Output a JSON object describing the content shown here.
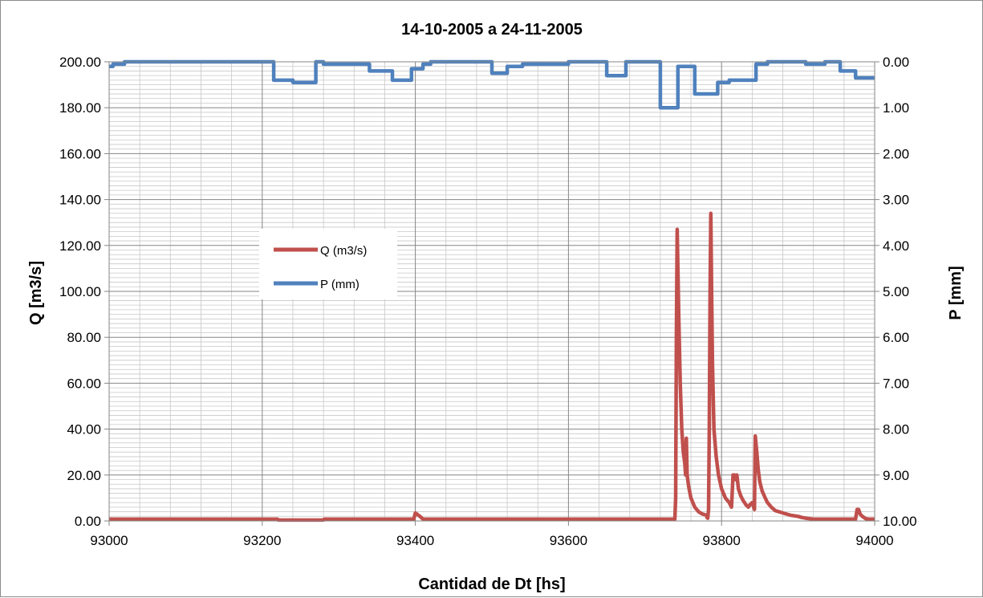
{
  "chart_data": {
    "type": "line",
    "title": "14-10-2005 a 24-11-2005",
    "xlabel": "Cantidad de Dt [hs]",
    "ylabel": "Q [m3/s]",
    "y2label": "P [mm]",
    "xlim": [
      93000,
      94000
    ],
    "ylim": [
      0,
      200
    ],
    "y2lim": [
      10,
      0
    ],
    "y2_inverted": true,
    "grid": true,
    "legend_position": "center-left",
    "x_ticks": [
      93000,
      93200,
      93400,
      93600,
      93800,
      94000
    ],
    "x_tick_labels": [
      "93000",
      "93200",
      "93400",
      "93600",
      "93800",
      "94000"
    ],
    "y_tick_labels": [
      "0.00",
      "20.00",
      "40.00",
      "60.00",
      "80.00",
      "100.00",
      "120.00",
      "140.00",
      "160.00",
      "180.00",
      "200.00"
    ],
    "y2_tick_labels": [
      "10.00",
      "9.00",
      "8.00",
      "7.00",
      "6.00",
      "5.00",
      "4.00",
      "3.00",
      "2.00",
      "1.00",
      "0.00"
    ],
    "series": [
      {
        "name": "Q (m3/s)",
        "color": "#c0504d",
        "axis": "left",
        "x": [
          93000,
          93220,
          93221,
          93280,
          93281,
          93350,
          93398,
          93400,
          93402,
          93406,
          93410,
          93500,
          93700,
          93739,
          93740,
          93741,
          93742,
          93744,
          93746,
          93748,
          93750,
          93752,
          93753,
          93754,
          93755,
          93757,
          93760,
          93765,
          93770,
          93775,
          93780,
          93781,
          93782,
          93783,
          93784,
          93785,
          93786,
          93787,
          93788,
          93790,
          93793,
          93796,
          93800,
          93805,
          93810,
          93813,
          93815,
          93817,
          93818,
          93820,
          93822,
          93825,
          93828,
          93832,
          93835,
          93837,
          93840,
          93842,
          93843,
          93844,
          93846,
          93848,
          93850,
          93853,
          93857,
          93860,
          93865,
          93870,
          93880,
          93890,
          93900,
          93905,
          93910,
          93920,
          93930,
          93940,
          93950,
          93960,
          93970,
          93975,
          93977,
          93979,
          93981,
          93984,
          93988,
          93992,
          94000
        ],
        "y": [
          0.8,
          0.8,
          0.4,
          0.4,
          0.8,
          0.8,
          0.8,
          3.5,
          3,
          2,
          0.8,
          0.8,
          0.8,
          0.8,
          10,
          80,
          127,
          90,
          60,
          40,
          30,
          25,
          20,
          36,
          20,
          15,
          10,
          6,
          4,
          3,
          2.5,
          1.5,
          1.2,
          5,
          40,
          100,
          134,
          100,
          70,
          40,
          28,
          20,
          14,
          10,
          8,
          6,
          20,
          20,
          18,
          20,
          14,
          11,
          9,
          7,
          6,
          7,
          8,
          6,
          5,
          37,
          30,
          22,
          17,
          13,
          10,
          8,
          6,
          4.5,
          3.5,
          2.5,
          2,
          1.5,
          1.2,
          0.8,
          0.8,
          0.8,
          0.8,
          0.8,
          0.8,
          0.8,
          5,
          5,
          3,
          2,
          1,
          0.8,
          0.8
        ]
      },
      {
        "name": "P (mm)",
        "color": "#4f81bd",
        "axis": "right",
        "x": [
          93000,
          93005,
          93005,
          93020,
          93020,
          93060,
          93060,
          93215,
          93215,
          93240,
          93240,
          93270,
          93270,
          93280,
          93280,
          93290,
          93290,
          93340,
          93340,
          93370,
          93370,
          93395,
          93395,
          93410,
          93410,
          93420,
          93420,
          93500,
          93500,
          93520,
          93520,
          93540,
          93540,
          93580,
          93580,
          93600,
          93600,
          93650,
          93650,
          93655,
          93655,
          93675,
          93675,
          93720,
          93720,
          93743,
          93743,
          93748,
          93748,
          93765,
          93765,
          93787,
          93787,
          93795,
          93795,
          93805,
          93805,
          93810,
          93810,
          93820,
          93820,
          93845,
          93845,
          93850,
          93850,
          93860,
          93860,
          93870,
          93870,
          93910,
          93910,
          93920,
          93920,
          93935,
          93935,
          93950,
          93950,
          93955,
          93955,
          93975,
          93975,
          93990,
          93990,
          94000
        ],
        "y": [
          0.1,
          0.1,
          0.05,
          0.05,
          0,
          0,
          0,
          0,
          0.4,
          0.4,
          0.45,
          0.45,
          0,
          0,
          0.05,
          0.05,
          0.05,
          0.05,
          0.2,
          0.2,
          0.4,
          0.4,
          0.15,
          0.15,
          0.05,
          0.05,
          0,
          0,
          0.25,
          0.25,
          0.1,
          0.1,
          0.05,
          0.05,
          0.05,
          0.05,
          0,
          0,
          0.3,
          0.3,
          0.3,
          0.3,
          0,
          0,
          1.0,
          1.0,
          0.1,
          0.1,
          0.1,
          0.1,
          0.7,
          0.7,
          0.7,
          0.7,
          0.45,
          0.45,
          0.45,
          0.45,
          0.4,
          0.4,
          0.4,
          0.4,
          0.05,
          0.05,
          0.05,
          0.05,
          0,
          0,
          0,
          0,
          0.05,
          0.05,
          0.05,
          0.05,
          0,
          0,
          0,
          0,
          0.2,
          0.2,
          0.35,
          0.35,
          0.35,
          0.35
        ]
      }
    ]
  }
}
